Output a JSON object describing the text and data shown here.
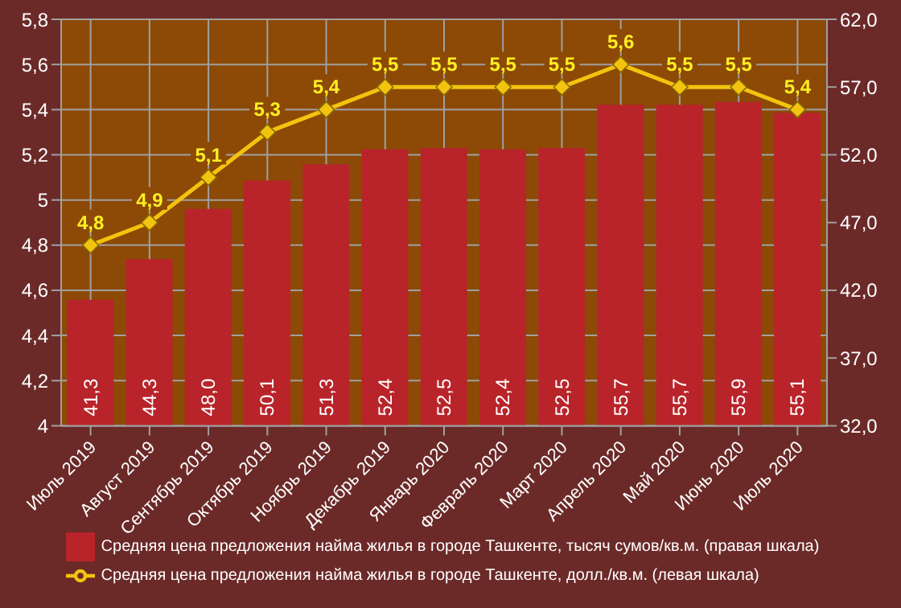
{
  "chart_data": {
    "type": "bar",
    "categories": [
      "Июль 2019",
      "Август 2019",
      "Сентябрь 2019",
      "Октябрь 2019",
      "Ноябрь 2019",
      "Декабрь 2019",
      "Январь 2020",
      "Февраль 2020",
      "Март 2020",
      "Апрель 2020",
      "Май 2020",
      "Июнь 2020",
      "Июль 2020"
    ],
    "series": [
      {
        "name": "Средняя цена предложения найма жилья в городе Ташкенте, тысяч сумов/кв.м. (правая шкала)",
        "axis": "y2",
        "color": "#b8242a",
        "values": [
          41.3,
          44.3,
          48.0,
          50.1,
          51.3,
          52.4,
          52.5,
          52.4,
          52.5,
          55.7,
          55.7,
          55.9,
          55.1
        ],
        "value_labels": [
          "41,3",
          "44,3",
          "48,0",
          "50,1",
          "51,3",
          "52,4",
          "52,5",
          "52,4",
          "52,5",
          "55,7",
          "55,7",
          "55,9",
          "55,1"
        ]
      },
      {
        "name": "Средняя цена предложения найма жилья в городе Ташкенте, долл./кв.м. (левая шкала)",
        "type": "line",
        "color": "#f2c40f",
        "marker": "diamond",
        "values": [
          4.8,
          4.9,
          5.1,
          5.3,
          5.4,
          5.5,
          5.5,
          5.5,
          5.5,
          5.6,
          5.5,
          5.5,
          5.4
        ],
        "value_labels": [
          "4,8",
          "4,9",
          "5,1",
          "5,3",
          "5,4",
          "5,5",
          "5,5",
          "5,5",
          "5,5",
          "5,6",
          "5,5",
          "5,5",
          "5,4"
        ]
      }
    ],
    "ylim": [
      4,
      5.8
    ],
    "yticks": [
      4,
      {
        "value": 4.2,
        "label": "4,2"
      },
      {
        "value": 4.4,
        "label": "4,4"
      },
      {
        "value": 4.6,
        "label": "4,6"
      },
      {
        "value": 4.8,
        "label": "4,8"
      },
      5,
      {
        "value": 5.2,
        "label": "5,2"
      },
      {
        "value": 5.4,
        "label": "5,4"
      },
      {
        "value": 5.6,
        "label": "5,6"
      },
      {
        "value": 5.8,
        "label": "5,8"
      }
    ],
    "y2lim": [
      32,
      62
    ],
    "y2ticks": [
      {
        "value": 32,
        "label": "32,0"
      },
      {
        "value": 37,
        "label": "37,0"
      },
      {
        "value": 42,
        "label": "42,0"
      },
      {
        "value": 47,
        "label": "47,0"
      },
      {
        "value": 52,
        "label": "52,0"
      },
      {
        "value": 57,
        "label": "57,0"
      },
      {
        "value": 62,
        "label": "62,0"
      }
    ],
    "grid": true,
    "legend": "bottom"
  }
}
